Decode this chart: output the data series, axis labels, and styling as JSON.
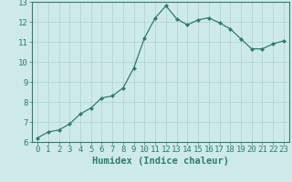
{
  "x": [
    0,
    1,
    2,
    3,
    4,
    5,
    6,
    7,
    8,
    9,
    10,
    11,
    12,
    13,
    14,
    15,
    16,
    17,
    18,
    19,
    20,
    21,
    22,
    23
  ],
  "y": [
    6.2,
    6.5,
    6.6,
    6.9,
    7.4,
    7.7,
    8.2,
    8.3,
    8.7,
    9.7,
    11.2,
    12.2,
    12.8,
    12.15,
    11.85,
    12.1,
    12.2,
    11.95,
    11.65,
    11.15,
    10.65,
    10.65,
    10.9,
    11.05
  ],
  "line_color": "#2e7d6e",
  "marker": "D",
  "marker_size": 2,
  "bg_color": "#ceeae8",
  "grid_color": "#a8d4d0",
  "xlabel": "Humidex (Indice chaleur)",
  "xlim": [
    -0.5,
    23.5
  ],
  "ylim": [
    6,
    13
  ],
  "yticks": [
    6,
    7,
    8,
    9,
    10,
    11,
    12,
    13
  ],
  "xticks": [
    0,
    1,
    2,
    3,
    4,
    5,
    6,
    7,
    8,
    9,
    10,
    11,
    12,
    13,
    14,
    15,
    16,
    17,
    18,
    19,
    20,
    21,
    22,
    23
  ],
  "label_fontsize": 7.5,
  "tick_fontsize": 6.5
}
